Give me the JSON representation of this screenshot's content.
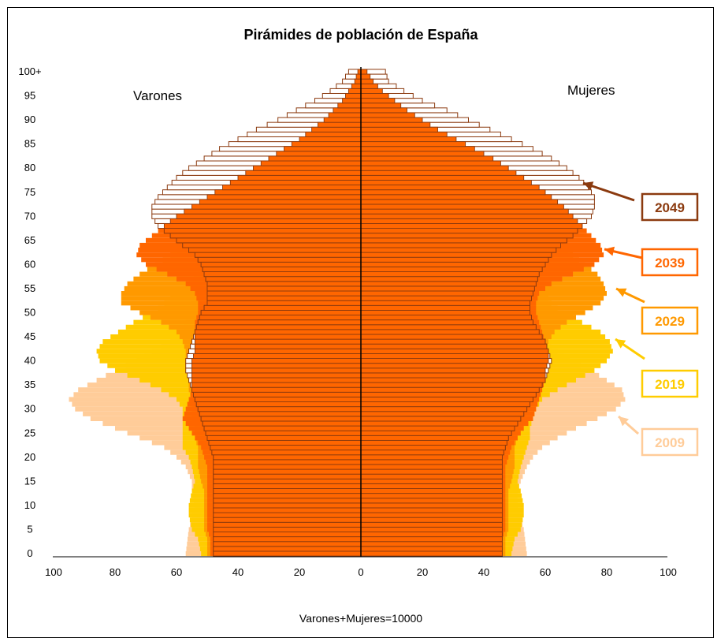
{
  "chart_data": {
    "type": "bar",
    "orientation": "horizontal-population-pyramid",
    "title": "Pirámides de población de España",
    "xlabel": "Varones+Mujeres=10000",
    "ylabel": "",
    "left_label": "Varones",
    "right_label": "Mujeres",
    "xlim": [
      -100,
      100
    ],
    "ylim": [
      0,
      100
    ],
    "grid": false,
    "x_ticks": [
      "100",
      "80",
      "60",
      "40",
      "20",
      "0",
      "20",
      "40",
      "60",
      "80",
      "100"
    ],
    "y_ticks": [
      "0",
      "5",
      "10",
      "15",
      "20",
      "25",
      "30",
      "35",
      "40",
      "45",
      "50",
      "55",
      "60",
      "65",
      "70",
      "75",
      "80",
      "85",
      "90",
      "95",
      "100+"
    ],
    "series": [
      {
        "name": "2009",
        "color": "#ffcc99",
        "male": {
          "ages": [
            0,
            5,
            10,
            13,
            15,
            18,
            20,
            22,
            24,
            26,
            28,
            30,
            32,
            34,
            36,
            38,
            40,
            42,
            44,
            46,
            48,
            50,
            52,
            54,
            56,
            58,
            60,
            62,
            64,
            66,
            68,
            70,
            72,
            74,
            76,
            78,
            80,
            82,
            84,
            86,
            88,
            90,
            92,
            94,
            96,
            98,
            100
          ],
          "values": [
            57,
            56,
            54,
            55,
            55,
            57,
            60,
            64,
            72,
            80,
            88,
            93,
            95,
            92,
            86,
            80,
            73,
            68,
            62,
            58,
            57,
            56,
            55,
            54,
            52,
            50,
            48,
            46,
            44,
            42,
            40,
            36,
            33,
            30,
            26,
            23,
            20,
            17,
            14,
            11,
            9,
            7,
            5,
            4,
            3,
            2,
            1
          ]
        },
        "female": {
          "ages": [
            0,
            5,
            10,
            13,
            15,
            18,
            20,
            22,
            24,
            26,
            28,
            30,
            32,
            34,
            36,
            38,
            40,
            42,
            44,
            46,
            48,
            50,
            52,
            54,
            56,
            58,
            60,
            62,
            64,
            66,
            68,
            70,
            72,
            74,
            76,
            78,
            80,
            82,
            84,
            86,
            88,
            90,
            92,
            94,
            96,
            98,
            100
          ],
          "values": [
            54,
            53,
            51,
            51,
            52,
            54,
            56,
            59,
            64,
            70,
            77,
            83,
            86,
            85,
            80,
            75,
            68,
            64,
            60,
            57,
            56,
            55,
            54,
            54,
            53,
            52,
            51,
            50,
            50,
            49,
            48,
            46,
            44,
            42,
            39,
            36,
            32,
            28,
            24,
            20,
            16,
            12,
            9,
            7,
            5,
            3,
            2
          ]
        }
      },
      {
        "name": "2019",
        "color": "#ffcc00",
        "male": {
          "ages": [
            0,
            3,
            5,
            8,
            10,
            13,
            15,
            18,
            20,
            22,
            24,
            26,
            28,
            30,
            32,
            34,
            36,
            38,
            40,
            42,
            44,
            46,
            48,
            50,
            52,
            54,
            56,
            58,
            60,
            62,
            64,
            66,
            68,
            70,
            72,
            74,
            76,
            78,
            80,
            82,
            84,
            86,
            88,
            90,
            92,
            94,
            96,
            98,
            100
          ],
          "values": [
            52,
            53,
            55,
            56,
            56,
            55,
            54,
            55,
            56,
            58,
            58,
            58,
            58,
            58,
            60,
            65,
            72,
            80,
            85,
            86,
            84,
            79,
            74,
            68,
            64,
            60,
            56,
            53,
            50,
            48,
            46,
            44,
            42,
            40,
            37,
            34,
            31,
            27,
            23,
            20,
            16,
            13,
            10,
            8,
            6,
            4,
            3,
            2,
            1
          ]
        },
        "female": {
          "ages": [
            0,
            3,
            5,
            8,
            10,
            13,
            15,
            18,
            20,
            22,
            24,
            26,
            28,
            30,
            32,
            34,
            36,
            38,
            40,
            42,
            44,
            46,
            48,
            50,
            52,
            54,
            56,
            58,
            60,
            62,
            64,
            66,
            68,
            70,
            72,
            74,
            76,
            78,
            80,
            82,
            84,
            86,
            88,
            90,
            92,
            94,
            96,
            98,
            100
          ],
          "values": [
            49,
            50,
            52,
            53,
            53,
            52,
            51,
            52,
            53,
            54,
            55,
            55,
            56,
            57,
            59,
            64,
            70,
            76,
            80,
            82,
            81,
            78,
            72,
            66,
            62,
            60,
            58,
            57,
            56,
            55,
            54,
            54,
            53,
            52,
            50,
            48,
            45,
            42,
            38,
            34,
            29,
            24,
            19,
            15,
            11,
            8,
            5,
            3,
            2
          ]
        }
      },
      {
        "name": "2029",
        "color": "#ff9900",
        "male": {
          "ages": [
            0,
            3,
            5,
            8,
            10,
            13,
            15,
            18,
            20,
            22,
            24,
            26,
            28,
            30,
            32,
            34,
            36,
            38,
            40,
            42,
            44,
            46,
            48,
            50,
            52,
            54,
            56,
            58,
            60,
            62,
            64,
            66,
            68,
            70,
            72,
            74,
            76,
            78,
            80,
            82,
            84,
            86,
            88,
            90,
            92,
            94,
            96,
            98,
            100
          ],
          "values": [
            50,
            50,
            51,
            51,
            51,
            51,
            52,
            53,
            53,
            53,
            54,
            54,
            55,
            55,
            55,
            56,
            56,
            56,
            57,
            57,
            58,
            60,
            65,
            72,
            78,
            78,
            76,
            72,
            67,
            62,
            58,
            54,
            50,
            47,
            44,
            40,
            36,
            31,
            27,
            23,
            19,
            15,
            12,
            9,
            7,
            5,
            3,
            2,
            1
          ]
        },
        "female": {
          "ages": [
            0,
            3,
            5,
            8,
            10,
            13,
            15,
            18,
            20,
            22,
            24,
            26,
            28,
            30,
            32,
            34,
            36,
            38,
            40,
            42,
            44,
            46,
            48,
            50,
            52,
            54,
            56,
            58,
            60,
            62,
            64,
            66,
            68,
            70,
            72,
            74,
            76,
            78,
            80,
            82,
            84,
            86,
            88,
            90,
            92,
            94,
            96,
            98,
            100
          ],
          "values": [
            47,
            47,
            48,
            48,
            48,
            48,
            49,
            50,
            50,
            50,
            51,
            52,
            53,
            54,
            55,
            56,
            57,
            58,
            59,
            60,
            61,
            63,
            67,
            73,
            78,
            80,
            79,
            77,
            73,
            69,
            66,
            64,
            62,
            60,
            58,
            55,
            52,
            48,
            44,
            39,
            34,
            29,
            24,
            19,
            14,
            10,
            7,
            4,
            2
          ]
        }
      },
      {
        "name": "2039",
        "color": "#ff6600",
        "male": {
          "ages": [
            0,
            3,
            5,
            8,
            10,
            13,
            15,
            18,
            20,
            22,
            24,
            26,
            28,
            30,
            32,
            34,
            36,
            38,
            40,
            42,
            44,
            46,
            48,
            50,
            52,
            54,
            56,
            58,
            60,
            62,
            64,
            66,
            68,
            70,
            72,
            74,
            76,
            78,
            80,
            82,
            84,
            86,
            88,
            90,
            92,
            94,
            96,
            98,
            100
          ],
          "values": [
            49,
            49,
            50,
            50,
            50,
            50,
            50,
            50,
            51,
            52,
            54,
            56,
            58,
            57,
            56,
            55,
            55,
            55,
            55,
            54,
            54,
            54,
            54,
            53,
            53,
            54,
            57,
            63,
            70,
            73,
            72,
            68,
            64,
            60,
            55,
            50,
            45,
            40,
            35,
            30,
            25,
            20,
            16,
            12,
            9,
            6,
            4,
            2,
            1
          ]
        },
        "female": {
          "ages": [
            0,
            3,
            5,
            8,
            10,
            13,
            15,
            18,
            20,
            22,
            24,
            26,
            28,
            30,
            32,
            34,
            36,
            38,
            40,
            42,
            44,
            46,
            48,
            50,
            52,
            54,
            56,
            58,
            60,
            62,
            64,
            66,
            68,
            70,
            72,
            74,
            76,
            78,
            80,
            82,
            84,
            86,
            88,
            90,
            92,
            94,
            96,
            98,
            100
          ],
          "values": [
            46,
            46,
            47,
            47,
            47,
            47,
            47,
            47,
            48,
            49,
            51,
            53,
            56,
            57,
            58,
            59,
            60,
            60,
            61,
            61,
            60,
            59,
            58,
            57,
            57,
            58,
            62,
            69,
            76,
            79,
            78,
            75,
            72,
            69,
            66,
            62,
            58,
            53,
            48,
            43,
            37,
            31,
            25,
            20,
            15,
            11,
            7,
            4,
            2
          ]
        }
      },
      {
        "name": "2049",
        "color": "#cc5500",
        "male": {
          "ages": [
            0,
            3,
            5,
            8,
            10,
            13,
            15,
            18,
            20,
            22,
            24,
            26,
            28,
            30,
            32,
            34,
            36,
            38,
            40,
            42,
            44,
            46,
            48,
            50,
            52,
            54,
            56,
            58,
            60,
            62,
            64,
            66,
            68,
            70,
            72,
            74,
            76,
            78,
            80,
            82,
            84,
            86,
            88,
            90,
            92,
            94,
            96,
            98,
            100
          ],
          "values": [
            48,
            48,
            48,
            48,
            48,
            48,
            48,
            48,
            48,
            49,
            50,
            51,
            52,
            53,
            54,
            55,
            56,
            57,
            57,
            56,
            55,
            54,
            53,
            52,
            50,
            50,
            50,
            51,
            52,
            54,
            58,
            62,
            66,
            68,
            68,
            66,
            63,
            60,
            56,
            51,
            46,
            40,
            34,
            27,
            21,
            15,
            10,
            6,
            4
          ]
        },
        "female": {
          "ages": [
            0,
            3,
            5,
            8,
            10,
            13,
            15,
            18,
            20,
            22,
            24,
            26,
            28,
            30,
            32,
            34,
            36,
            38,
            40,
            42,
            44,
            46,
            48,
            50,
            52,
            54,
            56,
            58,
            60,
            62,
            64,
            66,
            68,
            70,
            72,
            74,
            76,
            78,
            80,
            82,
            84,
            86,
            88,
            90,
            92,
            94,
            96,
            98,
            100
          ],
          "values": [
            46,
            46,
            46,
            46,
            46,
            46,
            46,
            46,
            46,
            47,
            48,
            50,
            52,
            54,
            56,
            58,
            60,
            61,
            62,
            61,
            60,
            58,
            56,
            55,
            55,
            56,
            57,
            58,
            60,
            62,
            65,
            69,
            72,
            75,
            76,
            76,
            74,
            71,
            67,
            62,
            56,
            49,
            42,
            35,
            28,
            20,
            14,
            9,
            8
          ]
        }
      }
    ]
  }
}
